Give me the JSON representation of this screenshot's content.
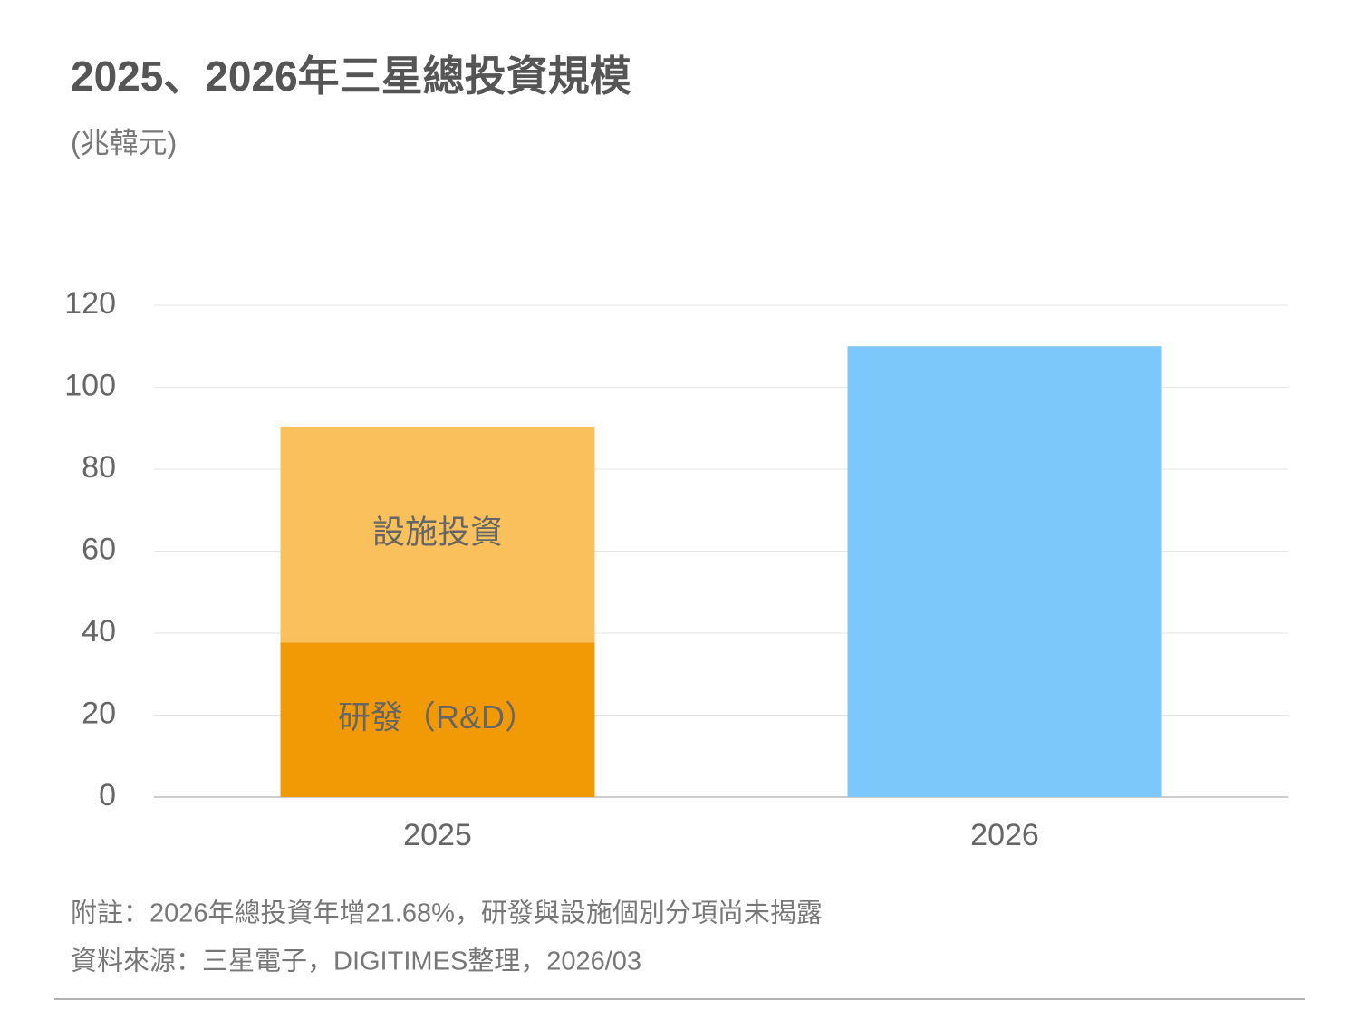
{
  "chart_data": {
    "type": "stacked-bar",
    "title": "2025、2026年三星總投資規模",
    "subtitle": "(兆韓元)",
    "categories": [
      "2025",
      "2026"
    ],
    "series": [
      {
        "name": "研發（R&D）",
        "color": "#f29a05",
        "values": [
          37.7,
          null
        ]
      },
      {
        "name": "設施投資",
        "color": "#f9c05c",
        "values": [
          52.7,
          null
        ]
      },
      {
        "color": "#7dc8fa",
        "values": [
          null,
          110
        ]
      }
    ],
    "ylim": [
      0,
      120
    ],
    "yticks": [
      0,
      20,
      40,
      60,
      80,
      100,
      120
    ],
    "grid": true,
    "notes": [
      "附註：2026年總投資年增21.68%，研發與設施個別分項尚未揭露",
      "資料來源：三星電子，DIGITIMES整理，2026/03"
    ]
  }
}
